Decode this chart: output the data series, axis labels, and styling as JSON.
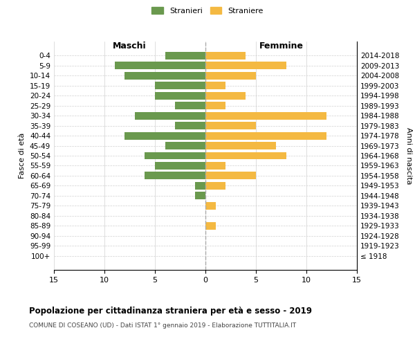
{
  "age_groups": [
    "0-4",
    "5-9",
    "10-14",
    "15-19",
    "20-24",
    "25-29",
    "30-34",
    "35-39",
    "40-44",
    "45-49",
    "50-54",
    "55-59",
    "60-64",
    "65-69",
    "70-74",
    "75-79",
    "80-84",
    "85-89",
    "90-94",
    "95-99",
    "100+"
  ],
  "birth_years": [
    "2014-2018",
    "2009-2013",
    "2004-2008",
    "1999-2003",
    "1994-1998",
    "1989-1993",
    "1984-1988",
    "1979-1983",
    "1974-1978",
    "1969-1973",
    "1964-1968",
    "1959-1963",
    "1954-1958",
    "1949-1953",
    "1944-1948",
    "1939-1943",
    "1934-1938",
    "1929-1933",
    "1924-1928",
    "1919-1923",
    "≤ 1918"
  ],
  "maschi": [
    4,
    9,
    8,
    5,
    5,
    3,
    7,
    3,
    8,
    4,
    6,
    5,
    6,
    1,
    1,
    0,
    0,
    0,
    0,
    0,
    0
  ],
  "femmine": [
    4,
    8,
    5,
    2,
    4,
    2,
    12,
    5,
    12,
    7,
    8,
    2,
    5,
    2,
    0,
    1,
    0,
    1,
    0,
    0,
    0
  ],
  "maschi_color": "#6a994e",
  "femmine_color": "#f4b942",
  "title": "Popolazione per cittadinanza straniera per età e sesso - 2019",
  "subtitle": "COMUNE DI COSEANO (UD) - Dati ISTAT 1° gennaio 2019 - Elaborazione TUTTITALIA.IT",
  "label_left": "Maschi",
  "label_right": "Femmine",
  "ylabel_left": "Fasce di età",
  "ylabel_right": "Anni di nascita",
  "legend_maschi": "Stranieri",
  "legend_femmine": "Straniere",
  "xlim": 15,
  "bg_color": "#ffffff",
  "grid_color": "#d0d0d0",
  "bar_height": 0.75
}
